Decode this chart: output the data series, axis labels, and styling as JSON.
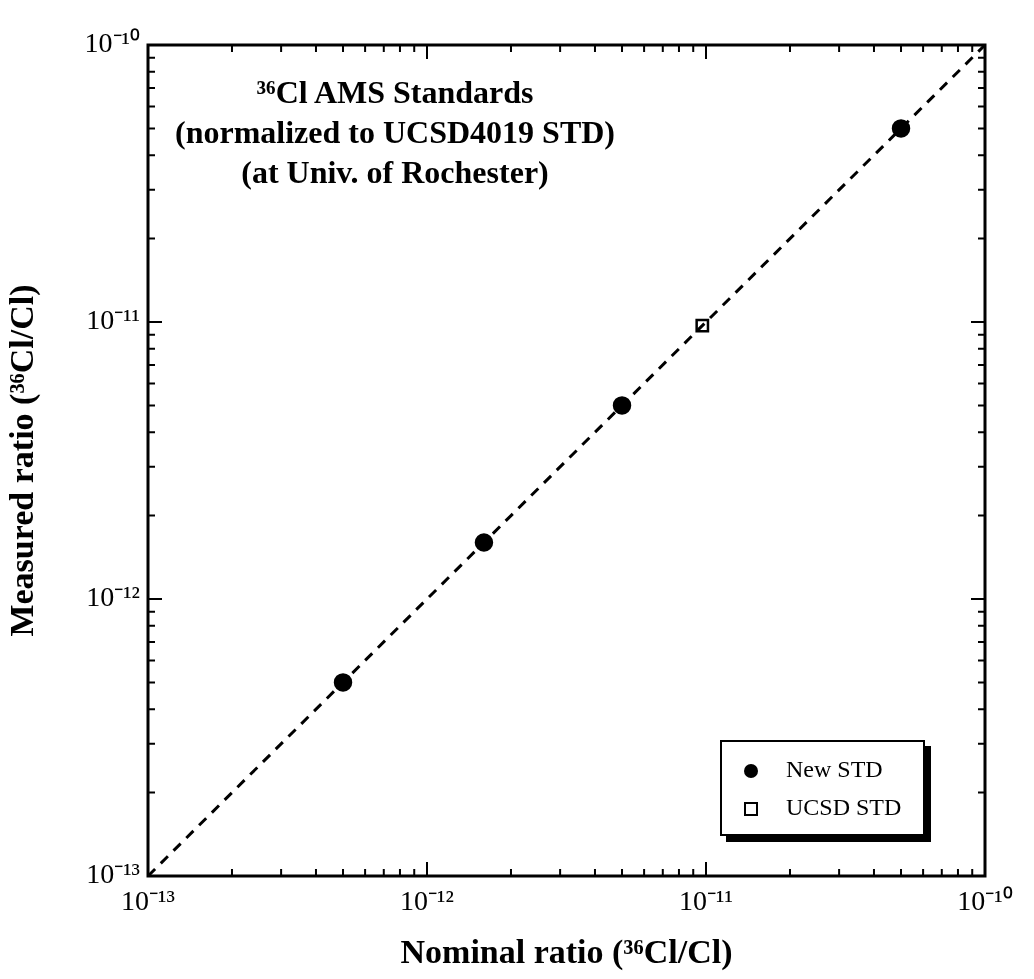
{
  "chart_data": {
    "type": "scatter",
    "title": "³⁶Cl AMS Standards",
    "subtitle": "(normalized to UCSD4019 STD)\n(at Univ. of Rochester)",
    "xlabel": "Nominal ratio (³⁶Cl/Cl)",
    "ylabel": "Measured ratio (³⁶Cl/Cl)",
    "log": "xy",
    "grid": false,
    "legend": "bottom right",
    "xlim": [
      1e-13,
      1e-10
    ],
    "ylim": [
      1e-13,
      1e-10
    ],
    "xticks": [
      {
        "value": 1e-13,
        "label": "10⁻¹³"
      },
      {
        "value": 2e-13,
        "label": null
      },
      {
        "value": 3e-13,
        "label": null
      },
      {
        "value": 4e-13,
        "label": null
      },
      {
        "value": 5e-13,
        "label": null
      },
      {
        "value": 6e-13,
        "label": null
      },
      {
        "value": 7e-13,
        "label": null
      },
      {
        "value": 8e-13,
        "label": null
      },
      {
        "value": 9e-13,
        "label": null
      },
      {
        "value": 1e-12,
        "label": "10⁻¹²"
      },
      {
        "value": 2e-12,
        "label": null
      },
      {
        "value": 3e-12,
        "label": null
      },
      {
        "value": 4e-12,
        "label": null
      },
      {
        "value": 5e-12,
        "label": null
      },
      {
        "value": 6e-12,
        "label": null
      },
      {
        "value": 7e-12,
        "label": null
      },
      {
        "value": 8e-12,
        "label": null
      },
      {
        "value": 9e-12,
        "label": null
      },
      {
        "value": 1e-11,
        "label": "10⁻¹¹"
      },
      {
        "value": 2e-11,
        "label": null
      },
      {
        "value": 3e-11,
        "label": null
      },
      {
        "value": 4e-11,
        "label": null
      },
      {
        "value": 5e-11,
        "label": null
      },
      {
        "value": 6e-11,
        "label": null
      },
      {
        "value": 7e-11,
        "label": null
      },
      {
        "value": 8e-11,
        "label": null
      },
      {
        "value": 9e-11,
        "label": null
      },
      {
        "value": 1e-10,
        "label": "10⁻¹⁰"
      }
    ],
    "yticks": [
      {
        "value": 1e-13,
        "label": "10⁻¹³"
      },
      {
        "value": 2e-13,
        "label": null
      },
      {
        "value": 3e-13,
        "label": null
      },
      {
        "value": 4e-13,
        "label": null
      },
      {
        "value": 5e-13,
        "label": null
      },
      {
        "value": 6e-13,
        "label": null
      },
      {
        "value": 7e-13,
        "label": null
      },
      {
        "value": 8e-13,
        "label": null
      },
      {
        "value": 9e-13,
        "label": null
      },
      {
        "value": 1e-12,
        "label": "10⁻¹²"
      },
      {
        "value": 2e-12,
        "label": null
      },
      {
        "value": 3e-12,
        "label": null
      },
      {
        "value": 4e-12,
        "label": null
      },
      {
        "value": 5e-12,
        "label": null
      },
      {
        "value": 6e-12,
        "label": null
      },
      {
        "value": 7e-12,
        "label": null
      },
      {
        "value": 8e-12,
        "label": null
      },
      {
        "value": 9e-12,
        "label": null
      },
      {
        "value": 1e-11,
        "label": "10⁻¹¹"
      },
      {
        "value": 2e-11,
        "label": null
      },
      {
        "value": 3e-11,
        "label": null
      },
      {
        "value": 4e-11,
        "label": null
      },
      {
        "value": 5e-11,
        "label": null
      },
      {
        "value": 6e-11,
        "label": null
      },
      {
        "value": 7e-11,
        "label": null
      },
      {
        "value": 8e-11,
        "label": null
      },
      {
        "value": 9e-11,
        "label": null
      },
      {
        "value": 1e-10,
        "label": "10⁻¹⁰"
      }
    ],
    "series": [
      {
        "type": "line",
        "color": "#000000",
        "line_style": "dashed",
        "marker": "none",
        "x": [
          1e-13,
          1e-10
        ],
        "values": [
          1e-13,
          1e-10
        ]
      },
      {
        "name": "New STD",
        "color": "#000000",
        "marker": "circle",
        "x": [
          5e-13,
          1.6e-12,
          5e-12,
          5e-11
        ],
        "values": [
          5e-13,
          1.6e-12,
          5e-12,
          5e-11
        ]
      },
      {
        "name": "UCSD STD",
        "color": "#000000",
        "marker": "square",
        "x": [
          9.7e-12
        ],
        "values": [
          9.7e-12
        ]
      }
    ]
  }
}
